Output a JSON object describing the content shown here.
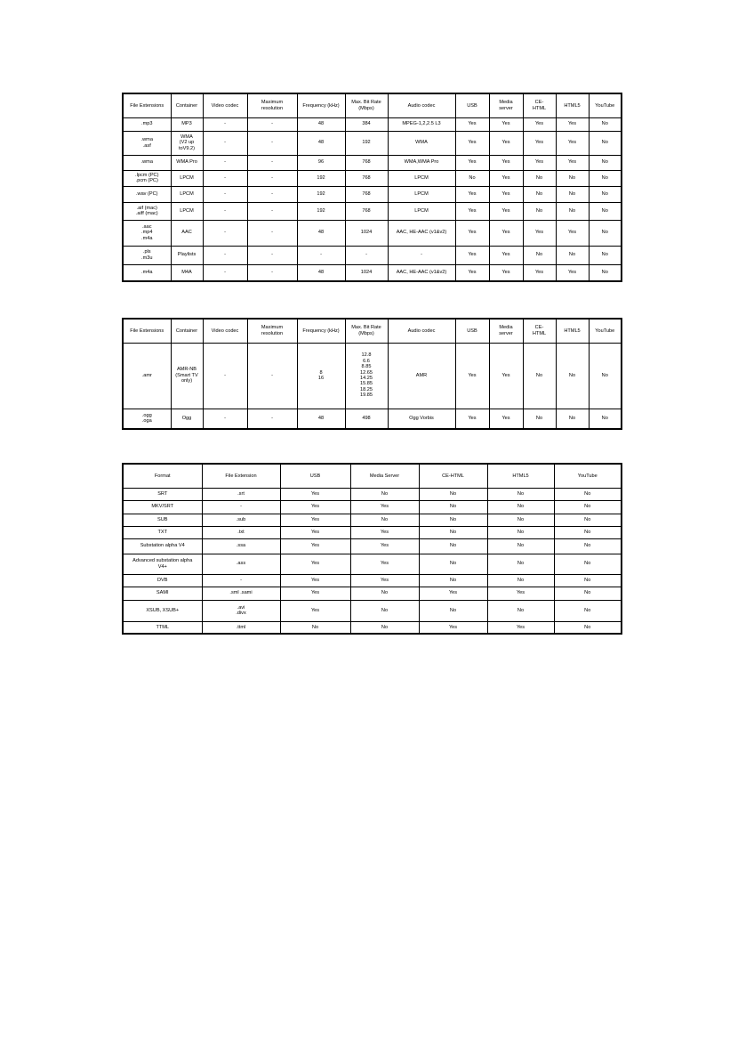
{
  "audio_table_1": {
    "headers": [
      "File Extensions",
      "Container",
      "Video codec",
      "Maximum\nresolution",
      "Frequency (kHz)",
      "Max. Bit Rate\n(Mbps)",
      "Audio codec",
      "USB",
      "Media\nserver",
      "CE-\nHTML",
      "HTML5",
      "YouTube"
    ],
    "rows": [
      [
        ".mp3",
        "MP3",
        "-",
        "-",
        "48",
        "384",
        "MPEG-1,2,2.5 L3",
        "Yes",
        "Yes",
        "Yes",
        "Yes",
        "No"
      ],
      [
        ".wma\n.asf",
        "WMA\n(V2 up\ntoV9.2)",
        "-",
        "-",
        "48",
        "192",
        "WMA",
        "Yes",
        "Yes",
        "Yes",
        "Yes",
        "No"
      ],
      [
        ".wma",
        "WMA Pro",
        "-",
        "-",
        "96",
        "768",
        "WMA,WMA Pro",
        "Yes",
        "Yes",
        "Yes",
        "Yes",
        "No"
      ],
      [
        ".lpcm (PC)\n.pcm (PC)",
        "LPCM",
        "-",
        "-",
        "192",
        "768",
        "LPCM",
        "No",
        "Yes",
        "No",
        "No",
        "No"
      ],
      [
        ".wav (PC)",
        "LPCM",
        "-",
        "-",
        "192",
        "768",
        "LPCM",
        "Yes",
        "Yes",
        "No",
        "No",
        "No"
      ],
      [
        ".aif (mac)\n.aiff (mac)",
        "LPCM",
        "-",
        "-",
        "192",
        "768",
        "LPCM",
        "Yes",
        "Yes",
        "No",
        "No",
        "No"
      ],
      [
        ".aac\n.mp4\n.m4a",
        "AAC",
        "-",
        "-",
        "48",
        "1024",
        "AAC, HE-AAC (v1&v2)",
        "Yes",
        "Yes",
        "Yes",
        "Yes",
        "No"
      ],
      [
        ".pls\n.m3u",
        "Playlists",
        "-",
        "-",
        "-",
        "-",
        "-",
        "Yes",
        "Yes",
        "No",
        "No",
        "No"
      ],
      [
        ".m4a",
        "M4A",
        "-",
        "-",
        "48",
        "1024",
        "AAC, HE-AAC (v1&v2)",
        "Yes",
        "Yes",
        "Yes",
        "Yes",
        "No"
      ]
    ]
  },
  "audio_table_2": {
    "headers": [
      "File Extensions",
      "Container",
      "Video codec",
      "Maximum\nresolution",
      "Frequency (kHz)",
      "Max. Bit Rate\n(Mbps)",
      "Audio codec",
      "USB",
      "Media\nserver",
      "CE-\nHTML",
      "HTML5",
      "YouTube"
    ],
    "rows": [
      [
        ".amr",
        "AMR-NB\n(Smart TV\nonly)",
        "-",
        "-",
        "8\n16",
        "12.8\n6.6\n8.85\n12.65\n14.25\n15.85\n18.25\n19.85",
        "AMR",
        "Yes",
        "Yes",
        "No",
        "No",
        "No"
      ],
      [
        ".ogg\n.oga",
        "Ogg",
        "-",
        "-",
        "48",
        "498",
        "Ogg Vorbis",
        "Yes",
        "Yes",
        "No",
        "No",
        "No"
      ]
    ]
  },
  "subtitle_table": {
    "headers": [
      "Format",
      "File Extension",
      "USB",
      "Media Server",
      "CE-HTML",
      "HTML5",
      "YouTube"
    ],
    "rows": [
      [
        "SRT",
        ".srt",
        "Yes",
        "No",
        "No",
        "No",
        "No"
      ],
      [
        "MKV/SRT",
        "-",
        "Yes",
        "Yes",
        "No",
        "No",
        "No"
      ],
      [
        "SUB",
        ".sub",
        "Yes",
        "No",
        "No",
        "No",
        "No"
      ],
      [
        "TXT",
        ".txt",
        "Yes",
        "Yes",
        "No",
        "No",
        "No"
      ],
      [
        "Substation alpha V4",
        ".ssa",
        "Yes",
        "Yes",
        "No",
        "No",
        "No"
      ],
      [
        "Advanced substation alpha\nV4+",
        ".ass",
        "Yes",
        "Yes",
        "No",
        "No",
        "No"
      ],
      [
        "DVB",
        "-",
        "Yes",
        "Yes",
        "No",
        "No",
        "No"
      ],
      [
        "SAMI",
        ".sml .sami",
        "Yes",
        "No",
        "Yes",
        "Yes",
        "No"
      ],
      [
        "XSUB, XSUB+",
        ".avi\n.divx",
        "Yes",
        "No",
        "No",
        "No",
        "No"
      ],
      [
        "TTML",
        ".ttml",
        "No",
        "No",
        "Yes",
        "Yes",
        "No"
      ]
    ]
  }
}
